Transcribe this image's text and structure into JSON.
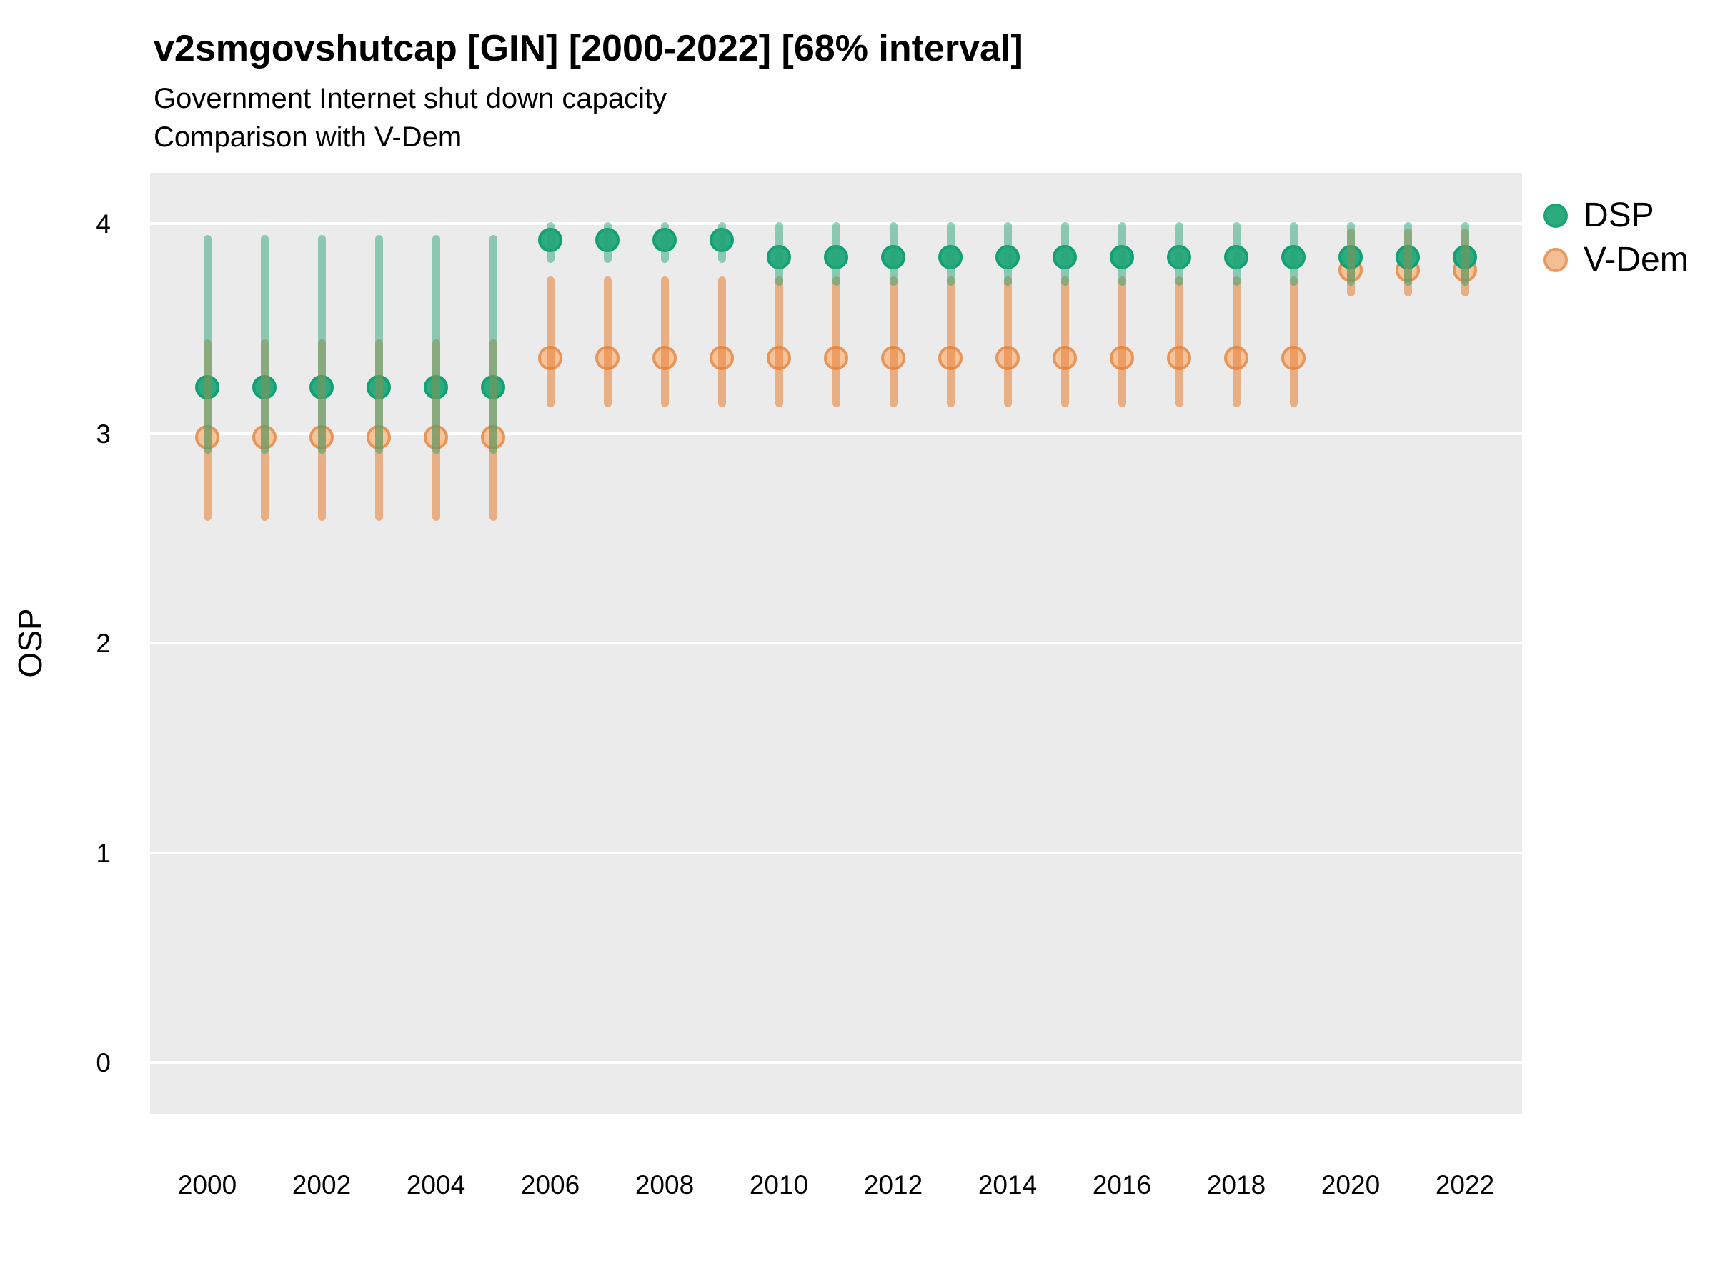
{
  "header": {
    "title": "v2smgovshutcap [GIN] [2000-2022] [68% interval]",
    "subtitle_line1": "Government Internet shut down capacity",
    "subtitle_line2": "Comparison with V-Dem"
  },
  "y_axis": {
    "label": "OSP",
    "tick_labels": [
      "4",
      "3",
      "2",
      "1",
      "0"
    ]
  },
  "x_axis": {
    "tick_labels": [
      "2000",
      "2002",
      "2004",
      "2006",
      "2008",
      "2010",
      "2012",
      "2014",
      "2016",
      "2018",
      "2020",
      "2022"
    ]
  },
  "legend": {
    "items": [
      {
        "label": "DSP",
        "fill": "#2BAB7E",
        "ring": "#1DA377"
      },
      {
        "label": "V-Dem",
        "fill": "#F4BE94",
        "ring": "#E89A61"
      }
    ]
  },
  "colors": {
    "panel_background": "#EBEBEB",
    "gridline": "#FFFFFF",
    "dsp_point_fill": "#2BAB7E",
    "dsp_point_stroke": "#14A077",
    "dsp_bar": "rgba(42,166,120,0.50)",
    "vdem_point_fill": "rgba(247,191,148,0.92)",
    "vdem_point_stroke": "#E79659",
    "vdem_bar": "rgba(229,125,50,0.55)",
    "text": "#000000"
  },
  "chart_data": {
    "type": "scatter",
    "subtype": "pointrange",
    "interval": "68%",
    "title": "v2smgovshutcap [GIN] [2000-2022] [68% interval]",
    "subtitle": "Government Internet shut down capacity / Comparison with V-Dem",
    "xlabel": "",
    "ylabel": "OSP",
    "ylim": [
      -0.25,
      4.25
    ],
    "yticks": [
      4,
      3,
      2,
      1,
      0
    ],
    "xticks": [
      2000,
      2002,
      2004,
      2006,
      2008,
      2010,
      2012,
      2014,
      2016,
      2018,
      2020,
      2022
    ],
    "grid": "major-horizontal",
    "legend_position": "right",
    "x": [
      2000,
      2001,
      2002,
      2003,
      2004,
      2005,
      2006,
      2007,
      2008,
      2009,
      2010,
      2011,
      2012,
      2013,
      2014,
      2015,
      2016,
      2017,
      2018,
      2019,
      2020,
      2021,
      2022
    ],
    "series": [
      {
        "name": "DSP",
        "points": [
          {
            "year": 2000,
            "value": 3.22,
            "lo": 2.92,
            "hi": 3.93
          },
          {
            "year": 2001,
            "value": 3.22,
            "lo": 2.92,
            "hi": 3.93
          },
          {
            "year": 2002,
            "value": 3.22,
            "lo": 2.92,
            "hi": 3.93
          },
          {
            "year": 2003,
            "value": 3.22,
            "lo": 2.92,
            "hi": 3.93
          },
          {
            "year": 2004,
            "value": 3.22,
            "lo": 2.92,
            "hi": 3.93
          },
          {
            "year": 2005,
            "value": 3.22,
            "lo": 2.92,
            "hi": 3.93
          },
          {
            "year": 2006,
            "value": 3.92,
            "lo": 3.83,
            "hi": 3.99
          },
          {
            "year": 2007,
            "value": 3.92,
            "lo": 3.83,
            "hi": 3.99
          },
          {
            "year": 2008,
            "value": 3.92,
            "lo": 3.83,
            "hi": 3.99
          },
          {
            "year": 2009,
            "value": 3.92,
            "lo": 3.83,
            "hi": 3.99
          },
          {
            "year": 2010,
            "value": 3.84,
            "lo": 3.72,
            "hi": 3.99
          },
          {
            "year": 2011,
            "value": 3.84,
            "lo": 3.72,
            "hi": 3.99
          },
          {
            "year": 2012,
            "value": 3.84,
            "lo": 3.72,
            "hi": 3.99
          },
          {
            "year": 2013,
            "value": 3.84,
            "lo": 3.72,
            "hi": 3.99
          },
          {
            "year": 2014,
            "value": 3.84,
            "lo": 3.72,
            "hi": 3.99
          },
          {
            "year": 2015,
            "value": 3.84,
            "lo": 3.72,
            "hi": 3.99
          },
          {
            "year": 2016,
            "value": 3.84,
            "lo": 3.72,
            "hi": 3.99
          },
          {
            "year": 2017,
            "value": 3.84,
            "lo": 3.72,
            "hi": 3.99
          },
          {
            "year": 2018,
            "value": 3.84,
            "lo": 3.72,
            "hi": 3.99
          },
          {
            "year": 2019,
            "value": 3.84,
            "lo": 3.72,
            "hi": 3.99
          },
          {
            "year": 2020,
            "value": 3.84,
            "lo": 3.72,
            "hi": 3.99
          },
          {
            "year": 2021,
            "value": 3.84,
            "lo": 3.72,
            "hi": 3.99
          },
          {
            "year": 2022,
            "value": 3.84,
            "lo": 3.72,
            "hi": 3.99
          }
        ]
      },
      {
        "name": "V-Dem",
        "points": [
          {
            "year": 2000,
            "value": 2.98,
            "lo": 2.6,
            "hi": 3.43
          },
          {
            "year": 2001,
            "value": 2.98,
            "lo": 2.6,
            "hi": 3.43
          },
          {
            "year": 2002,
            "value": 2.98,
            "lo": 2.6,
            "hi": 3.43
          },
          {
            "year": 2003,
            "value": 2.98,
            "lo": 2.6,
            "hi": 3.43
          },
          {
            "year": 2004,
            "value": 2.98,
            "lo": 2.6,
            "hi": 3.43
          },
          {
            "year": 2005,
            "value": 2.98,
            "lo": 2.6,
            "hi": 3.43
          },
          {
            "year": 2006,
            "value": 3.36,
            "lo": 3.14,
            "hi": 3.73
          },
          {
            "year": 2007,
            "value": 3.36,
            "lo": 3.14,
            "hi": 3.73
          },
          {
            "year": 2008,
            "value": 3.36,
            "lo": 3.14,
            "hi": 3.73
          },
          {
            "year": 2009,
            "value": 3.36,
            "lo": 3.14,
            "hi": 3.73
          },
          {
            "year": 2010,
            "value": 3.36,
            "lo": 3.14,
            "hi": 3.73
          },
          {
            "year": 2011,
            "value": 3.36,
            "lo": 3.14,
            "hi": 3.73
          },
          {
            "year": 2012,
            "value": 3.36,
            "lo": 3.14,
            "hi": 3.73
          },
          {
            "year": 2013,
            "value": 3.36,
            "lo": 3.14,
            "hi": 3.73
          },
          {
            "year": 2014,
            "value": 3.36,
            "lo": 3.14,
            "hi": 3.73
          },
          {
            "year": 2015,
            "value": 3.36,
            "lo": 3.14,
            "hi": 3.73
          },
          {
            "year": 2016,
            "value": 3.36,
            "lo": 3.14,
            "hi": 3.73
          },
          {
            "year": 2017,
            "value": 3.36,
            "lo": 3.14,
            "hi": 3.73
          },
          {
            "year": 2018,
            "value": 3.36,
            "lo": 3.14,
            "hi": 3.73
          },
          {
            "year": 2019,
            "value": 3.36,
            "lo": 3.14,
            "hi": 3.73
          },
          {
            "year": 2020,
            "value": 3.78,
            "lo": 3.67,
            "hi": 3.96
          },
          {
            "year": 2021,
            "value": 3.78,
            "lo": 3.67,
            "hi": 3.96
          },
          {
            "year": 2022,
            "value": 3.78,
            "lo": 3.67,
            "hi": 3.96
          }
        ]
      }
    ]
  }
}
